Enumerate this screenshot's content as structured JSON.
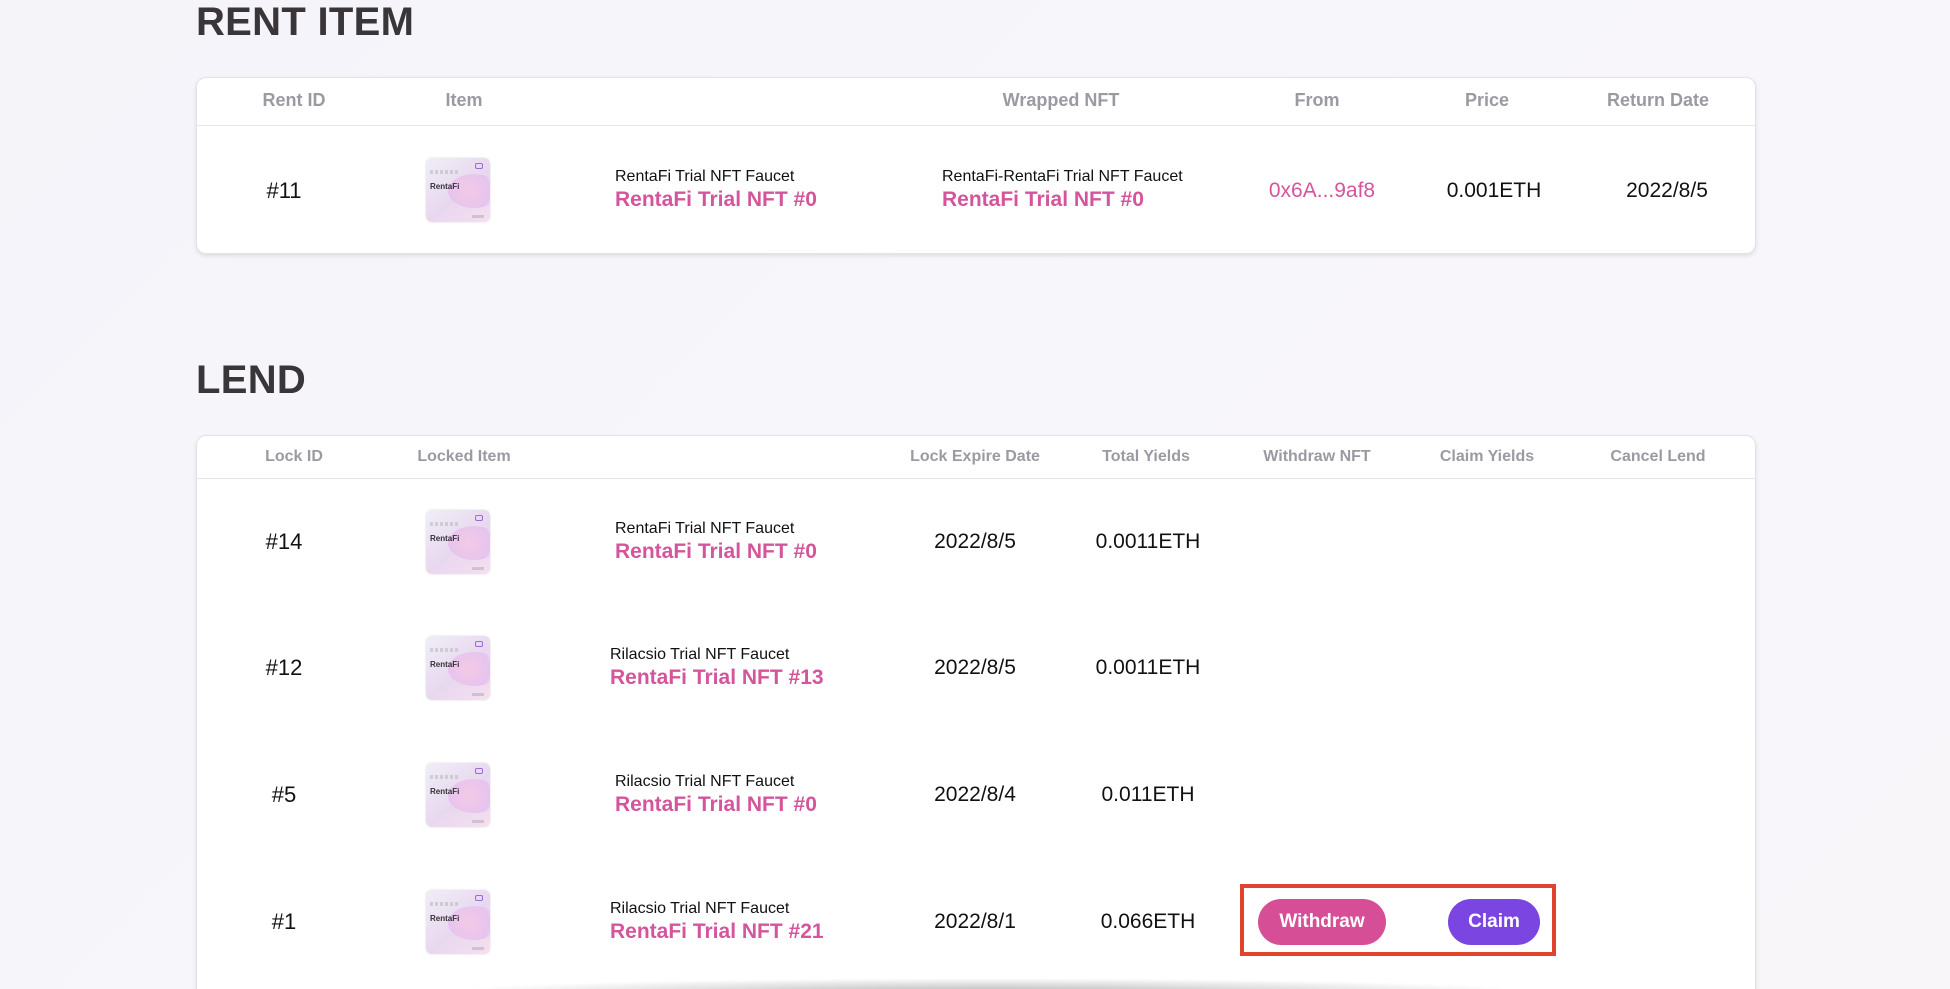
{
  "rent_section": {
    "title": "RENT ITEM",
    "headers": {
      "rent_id": "Rent ID",
      "item": "Item",
      "wrapped_nft": "Wrapped NFT",
      "from": "From",
      "price": "Price",
      "return_date": "Return Date"
    },
    "rows": [
      {
        "rent_id": "#11",
        "item_collection": "RentaFi Trial NFT Faucet",
        "item_name": "RentaFi Trial NFT #0",
        "wrapped_collection": "RentaFi-RentaFi Trial NFT Faucet",
        "wrapped_name": "RentaFi Trial NFT #0",
        "from": "0x6A...9af8",
        "price": "0.001ETH",
        "return_date": "2022/8/5"
      }
    ]
  },
  "lend_section": {
    "title": "LEND",
    "headers": {
      "lock_id": "Lock ID",
      "locked_item": "Locked Item",
      "lock_expire_date": "Lock Expire Date",
      "total_yields": "Total Yields",
      "withdraw_nft": "Withdraw NFT",
      "claim_yields": "Claim Yields",
      "cancel_lend": "Cancel Lend"
    },
    "rows": [
      {
        "lock_id": "#14",
        "collection": "RentaFi Trial NFT Faucet",
        "name": "RentaFi Trial NFT #0",
        "expire": "2022/8/5",
        "yields": "0.0011ETH"
      },
      {
        "lock_id": "#12",
        "collection": "Rilacsio Trial NFT Faucet",
        "name": "RentaFi Trial NFT #13",
        "expire": "2022/8/5",
        "yields": "0.0011ETH"
      },
      {
        "lock_id": "#5",
        "collection": "Rilacsio Trial NFT Faucet",
        "name": "RentaFi Trial NFT #0",
        "expire": "2022/8/4",
        "yields": "0.011ETH"
      },
      {
        "lock_id": "#1",
        "collection": "Rilacsio Trial NFT Faucet",
        "name": "RentaFi Trial NFT #21",
        "expire": "2022/8/1",
        "yields": "0.066ETH",
        "withdraw_label": "Withdraw",
        "claim_label": "Claim"
      }
    ]
  },
  "thumbnail": {
    "logo_text": "RentaFi"
  },
  "colors": {
    "accent_pink": "#d4559c",
    "withdraw_button": "#d64f96",
    "claim_button": "#7a45e0",
    "highlight_box": "#e0432e",
    "header_text": "#9a9aa3",
    "title_text": "#3a3538"
  }
}
